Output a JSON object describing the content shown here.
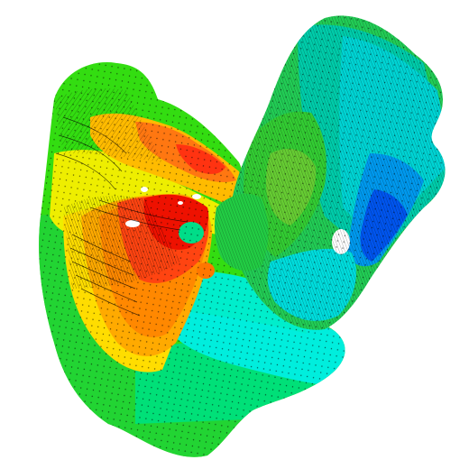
{
  "viewport": {
    "background": "#ffffff"
  },
  "surface": {
    "description_colors": {
      "hot": "#ff1a00",
      "orange": "#ff8000",
      "yellow": "#ffee00",
      "green": "#33dd00",
      "teal": "#00ee99",
      "cyan": "#00eeee",
      "blue": "#0066ff",
      "mesh": "#000000"
    }
  }
}
